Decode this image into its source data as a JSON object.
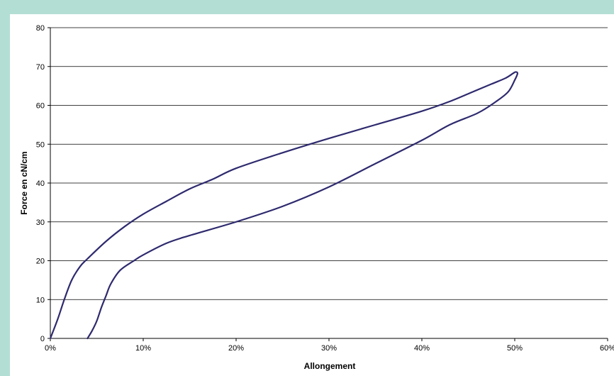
{
  "chart_data": {
    "type": "line",
    "title": "",
    "xlabel": "Allongement",
    "ylabel": "Force en cN/cm",
    "xlim": [
      0,
      60
    ],
    "ylim": [
      0,
      80
    ],
    "x_ticks": [
      0,
      10,
      20,
      30,
      40,
      50,
      60
    ],
    "x_tick_labels": [
      "0%",
      "10%",
      "20%",
      "30%",
      "40%",
      "50%",
      "60%"
    ],
    "y_ticks": [
      0,
      10,
      20,
      30,
      40,
      50,
      60,
      70,
      80
    ],
    "y_tick_labels": [
      "0",
      "10",
      "20",
      "30",
      "40",
      "50",
      "60",
      "70",
      "80"
    ],
    "grid": "horizontal",
    "legend": "none",
    "colors": {
      "line": "#2e2a6e",
      "grid": "#000000",
      "frame_background": "#b3ded4"
    },
    "series": [
      {
        "points": [
          [
            0,
            0
          ],
          [
            0.8,
            5
          ],
          [
            1.5,
            10
          ],
          [
            2.3,
            15
          ],
          [
            3.2,
            18.5
          ],
          [
            4,
            20.5
          ],
          [
            6,
            25
          ],
          [
            8,
            28.8
          ],
          [
            10,
            32
          ],
          [
            12.5,
            35.3
          ],
          [
            15,
            38.5
          ],
          [
            17.5,
            41
          ],
          [
            20,
            43.8
          ],
          [
            25,
            47.8
          ],
          [
            30,
            51.5
          ],
          [
            35,
            55
          ],
          [
            40,
            58.5
          ],
          [
            43,
            61
          ],
          [
            45.5,
            63.5
          ],
          [
            47.5,
            65.5
          ],
          [
            49,
            67
          ],
          [
            49.8,
            68.2
          ],
          [
            50.1,
            68.6
          ],
          [
            50.3,
            68.2
          ],
          [
            50,
            66.5
          ],
          [
            49.3,
            63.5
          ],
          [
            48,
            61
          ],
          [
            46,
            58
          ],
          [
            43,
            55
          ],
          [
            40,
            51
          ],
          [
            35,
            45
          ],
          [
            30,
            39
          ],
          [
            25,
            34
          ],
          [
            20,
            30
          ],
          [
            15,
            26.5
          ],
          [
            12.5,
            24.5
          ],
          [
            10,
            21.5
          ],
          [
            9,
            20
          ],
          [
            7.5,
            17.5
          ],
          [
            6.5,
            14
          ],
          [
            6,
            11
          ],
          [
            5.5,
            8
          ],
          [
            5,
            4.5
          ],
          [
            4.5,
            2
          ],
          [
            4,
            0
          ]
        ]
      }
    ]
  }
}
